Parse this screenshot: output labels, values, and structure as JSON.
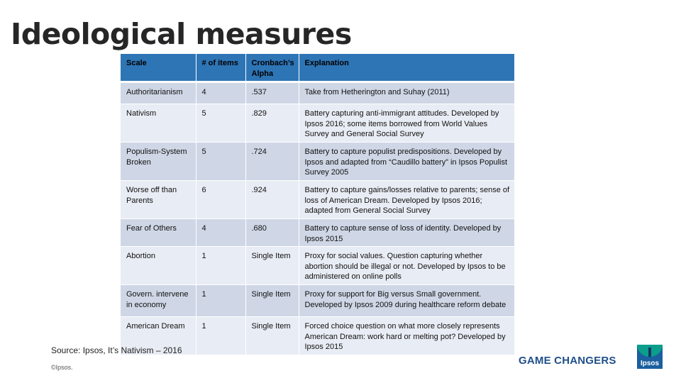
{
  "slide": {
    "title": "Ideological measures",
    "source": "Source: Ipsos, It’s Nativism – 2016",
    "copyright": "©Ipsos.",
    "tagline": "GAME CHANGERS",
    "logo_text": "Ipsos"
  },
  "table": {
    "headers": [
      "Scale",
      "# of items",
      "Cronbach’s Alpha",
      "Explanation"
    ],
    "rows": [
      {
        "scale": "Authoritarianism",
        "items": "4",
        "alpha": ".537",
        "explanation": "Take from Hetherington and Suhay (2011)"
      },
      {
        "scale": "Nativism",
        "items": "5",
        "alpha": ".829",
        "explanation": "Battery capturing anti-immigrant attitudes. Developed by Ipsos 2016; some items borrowed from World Values Survey and General Social Survey"
      },
      {
        "scale": "Populism-System Broken",
        "items": "5",
        "alpha": ".724",
        "explanation": "Battery to capture populist predispositions. Developed by Ipsos and adapted from “Caudillo battery” in Ipsos Populist Survey 2005"
      },
      {
        "scale": "Worse off than Parents",
        "items": "6",
        "alpha": ".924",
        "explanation": "Battery to capture gains/losses relative to parents; sense of loss of American Dream. Developed by Ipsos 2016; adapted from General Social Survey"
      },
      {
        "scale": "Fear of Others",
        "items": "4",
        "alpha": ".680",
        "explanation": "Battery to capture sense of loss of identity. Developed by Ipsos 2015"
      },
      {
        "scale": "Abortion",
        "items": "1",
        "alpha": "Single Item",
        "explanation": "Proxy for social values. Question capturing whether abortion should be illegal or not. Developed by Ipsos to be administered on online polls"
      },
      {
        "scale": "Govern. intervene in economy",
        "items": "1",
        "alpha": "Single Item",
        "explanation": "Proxy for support for Big versus Small government. Developed by Ipsos 2009 during healthcare reform debate"
      },
      {
        "scale": "American Dream",
        "items": "1",
        "alpha": "Single Item",
        "explanation": "Forced choice question on what more closely represents American Dream: work hard or melting pot? Developed by Ipsos 2015"
      }
    ]
  },
  "colors": {
    "header_bg": "#2e75b6",
    "row_odd": "#cfd7e6",
    "row_even": "#e8ecf4",
    "tagline": "#1f4f8a"
  }
}
